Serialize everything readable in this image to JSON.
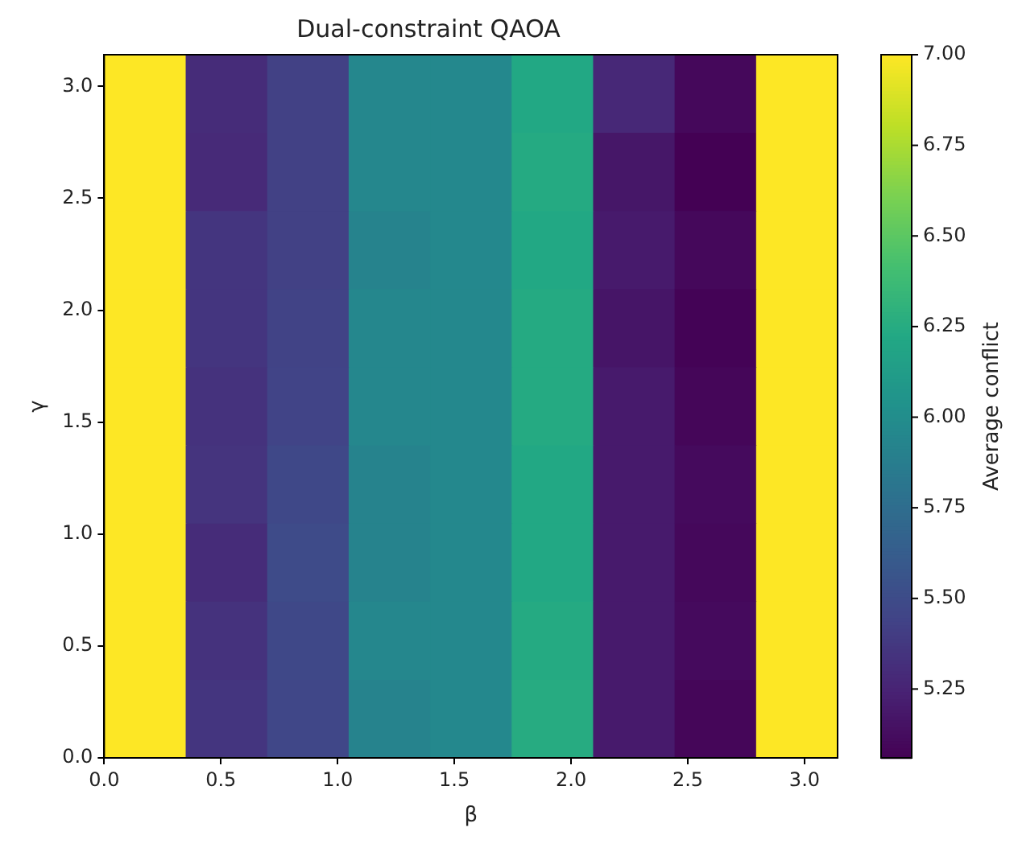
{
  "chart_data": {
    "type": "heatmap",
    "title": "Dual-constraint QAOA",
    "xlabel": "β",
    "ylabel": "γ",
    "clabel": "Average conflict",
    "x": [
      0.1745,
      0.5236,
      0.8727,
      1.2217,
      1.5708,
      1.9199,
      2.2689,
      2.618,
      2.9671
    ],
    "y": [
      2.9671,
      2.618,
      2.2689,
      1.9199,
      1.5708,
      1.2217,
      0.8727,
      0.5236,
      0.1745
    ],
    "cells": [
      [
        7.0,
        5.3,
        5.43,
        5.95,
        5.96,
        6.22,
        5.28,
        5.1,
        7.0
      ],
      [
        7.0,
        5.29,
        5.43,
        5.95,
        5.96,
        6.24,
        5.18,
        5.06,
        7.0
      ],
      [
        7.0,
        5.36,
        5.43,
        5.92,
        5.96,
        6.22,
        5.2,
        5.1,
        7.0
      ],
      [
        7.0,
        5.36,
        5.44,
        5.95,
        5.96,
        6.24,
        5.17,
        5.07,
        7.0
      ],
      [
        7.0,
        5.34,
        5.45,
        5.95,
        5.96,
        6.24,
        5.2,
        5.09,
        7.0
      ],
      [
        7.0,
        5.35,
        5.48,
        5.92,
        5.96,
        6.22,
        5.2,
        5.11,
        7.0
      ],
      [
        7.0,
        5.3,
        5.5,
        5.92,
        5.96,
        6.22,
        5.2,
        5.1,
        7.0
      ],
      [
        7.0,
        5.34,
        5.48,
        5.95,
        5.96,
        6.24,
        5.2,
        5.11,
        7.0
      ],
      [
        7.0,
        5.36,
        5.47,
        5.92,
        5.96,
        6.25,
        5.2,
        5.09,
        7.0
      ]
    ],
    "xlim": [
      0,
      3.1416
    ],
    "ylim": [
      0,
      3.1416
    ],
    "xticks": [
      {
        "value": 0,
        "label": "0.0"
      },
      {
        "value": 0.5,
        "label": "0.5"
      },
      {
        "value": 1,
        "label": "1.0"
      },
      {
        "value": 1.5,
        "label": "1.5"
      },
      {
        "value": 2,
        "label": "2.0"
      },
      {
        "value": 2.5,
        "label": "2.5"
      },
      {
        "value": 3,
        "label": "3.0"
      }
    ],
    "yticks": [
      {
        "value": 0,
        "label": "0.0"
      },
      {
        "value": 0.5,
        "label": "0.5"
      },
      {
        "value": 1,
        "label": "1.0"
      },
      {
        "value": 1.5,
        "label": "1.5"
      },
      {
        "value": 2,
        "label": "2.0"
      },
      {
        "value": 2.5,
        "label": "2.5"
      },
      {
        "value": 3,
        "label": "3.0"
      }
    ],
    "clim": [
      5.06,
      7.0
    ],
    "cticks": [
      {
        "value": 5.25,
        "label": "5.25"
      },
      {
        "value": 5.5,
        "label": "5.50"
      },
      {
        "value": 5.75,
        "label": "5.75"
      },
      {
        "value": 6,
        "label": "6.00"
      },
      {
        "value": 6.25,
        "label": "6.25"
      },
      {
        "value": 6.5,
        "label": "6.50"
      },
      {
        "value": 6.75,
        "label": "6.75"
      },
      {
        "value": 7,
        "label": "7.00"
      }
    ]
  }
}
